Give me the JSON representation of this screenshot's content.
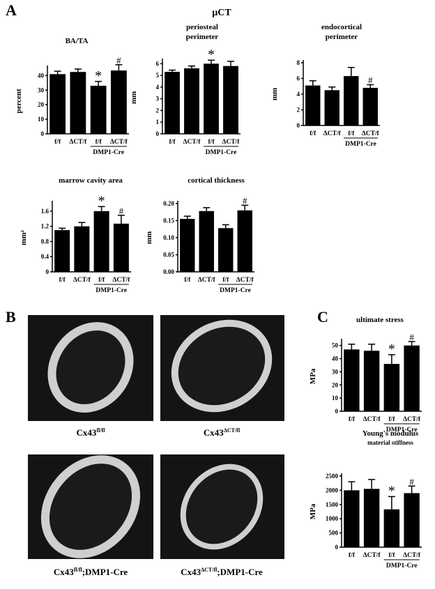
{
  "panel_labels": [
    "A",
    "B",
    "C"
  ],
  "heading": "µCT",
  "images": [
    {
      "caption": "Cx43",
      "sup": "fl/fl"
    },
    {
      "caption": "Cx43",
      "sup": "ΔCT/fl"
    },
    {
      "caption": "Cx43",
      "sup": "fl/fl",
      "suffix": ";DMP1-Cre"
    },
    {
      "caption": "Cx43",
      "sup": "ΔCT/fl",
      "suffix": ";DMP1-Cre"
    }
  ],
  "chart_data": [
    {
      "type": "bar",
      "title": [
        "BA/TA"
      ],
      "y_label": "percent",
      "categories": [
        "f/f",
        "ΔCT/f",
        "f/f",
        "ΔCT/f"
      ],
      "group_label": "DMP1-Cre",
      "values": [
        41,
        42.5,
        33,
        43.5
      ],
      "errors": [
        2,
        2,
        3,
        4
      ],
      "markers": [
        null,
        null,
        "*",
        "#"
      ],
      "color": "#000000",
      "ylim": [
        0,
        45
      ],
      "yticks": [
        0,
        10,
        20,
        30,
        40
      ]
    },
    {
      "type": "bar",
      "title": [
        "periosteal",
        "perimeter"
      ],
      "y_label": "mm",
      "categories": [
        "f/f",
        "ΔCT/f",
        "f/f",
        "ΔCT/f"
      ],
      "group_label": "DMP1-Cre",
      "values": [
        5.3,
        5.6,
        6.0,
        5.8
      ],
      "errors": [
        0.15,
        0.2,
        0.3,
        0.4
      ],
      "markers": [
        null,
        null,
        "*",
        null
      ],
      "color": "#000000",
      "ylim": [
        0,
        6.2
      ],
      "yticks": [
        0,
        1,
        2,
        3,
        4,
        5,
        6
      ]
    },
    {
      "type": "bar",
      "title": [
        "endocortical",
        "perimeter"
      ],
      "y_label": "mm",
      "categories": [
        "f/f",
        "ΔCT/f",
        "f/f",
        "ΔCT/f"
      ],
      "group_label": "DMP1-Cre",
      "values": [
        5.1,
        4.5,
        6.3,
        4.8
      ],
      "errors": [
        0.6,
        0.4,
        1.1,
        0.4
      ],
      "markers": [
        null,
        null,
        null,
        "#"
      ],
      "color": "#000000",
      "ylim": [
        0,
        8
      ],
      "yticks": [
        0,
        2,
        4,
        6,
        8
      ]
    },
    {
      "type": "bar",
      "title": [
        "marrow cavity  area"
      ],
      "y_label": "mm²",
      "categories": [
        "f/f",
        "ΔCT/f",
        "f/f",
        "ΔCT/f"
      ],
      "group_label": "DMP1-Cre",
      "values": [
        1.1,
        1.2,
        1.6,
        1.27
      ],
      "errors": [
        0.05,
        0.1,
        0.12,
        0.22
      ],
      "markers": [
        null,
        null,
        "*",
        "#"
      ],
      "color": "#000000",
      "ylim": [
        0,
        1.8
      ],
      "yticks": [
        0,
        0.4,
        0.8,
        1.2,
        1.6
      ]
    },
    {
      "type": "bar",
      "title": [
        "cortical thickness"
      ],
      "y_label": "mm",
      "categories": [
        "f/f",
        "ΔCT/f",
        "f/f",
        "ΔCT/f"
      ],
      "group_label": "DMP1-Cre",
      "values": [
        0.155,
        0.178,
        0.128,
        0.18
      ],
      "errors": [
        0.008,
        0.01,
        0.01,
        0.015
      ],
      "markers": [
        null,
        null,
        null,
        "#"
      ],
      "color": "#000000",
      "ylim": [
        0,
        0.2
      ],
      "yticks": [
        {
          "value": 0,
          "label": "0.00"
        },
        {
          "value": 0.05,
          "label": "0.05"
        },
        {
          "value": 0.1,
          "label": "0.10"
        },
        {
          "value": 0.15,
          "label": "0.15"
        },
        {
          "value": 0.2,
          "label": "0.20"
        }
      ]
    },
    {
      "type": "bar",
      "title": [
        "ultimate stress"
      ],
      "y_label": "MPa",
      "categories": [
        "f/f",
        "ΔCT/f",
        "f/f",
        "ΔCT/f"
      ],
      "group_label": "DMP1-Cre",
      "values": [
        47,
        46,
        36,
        50
      ],
      "errors": [
        4,
        5,
        7,
        3
      ],
      "markers": [
        null,
        null,
        "*",
        "#"
      ],
      "color": "#000000",
      "ylim": [
        0,
        53
      ],
      "yticks": [
        0,
        10,
        20,
        30,
        40,
        50
      ]
    },
    {
      "type": "bar",
      "title": [
        "Young's modulus"
      ],
      "subtitle": "material stiffness",
      "y_label": "MPa",
      "categories": [
        "f/f",
        "ΔCT/f",
        "f/f",
        "ΔCT/f"
      ],
      "group_label": "DMP1-Cre",
      "values": [
        2000,
        2050,
        1330,
        1900
      ],
      "errors": [
        300,
        330,
        450,
        250
      ],
      "markers": [
        null,
        null,
        "*",
        "#"
      ],
      "color": "#000000",
      "ylim": [
        0,
        2500
      ],
      "yticks": [
        0,
        500,
        1000,
        1500,
        2000,
        2500
      ]
    }
  ]
}
